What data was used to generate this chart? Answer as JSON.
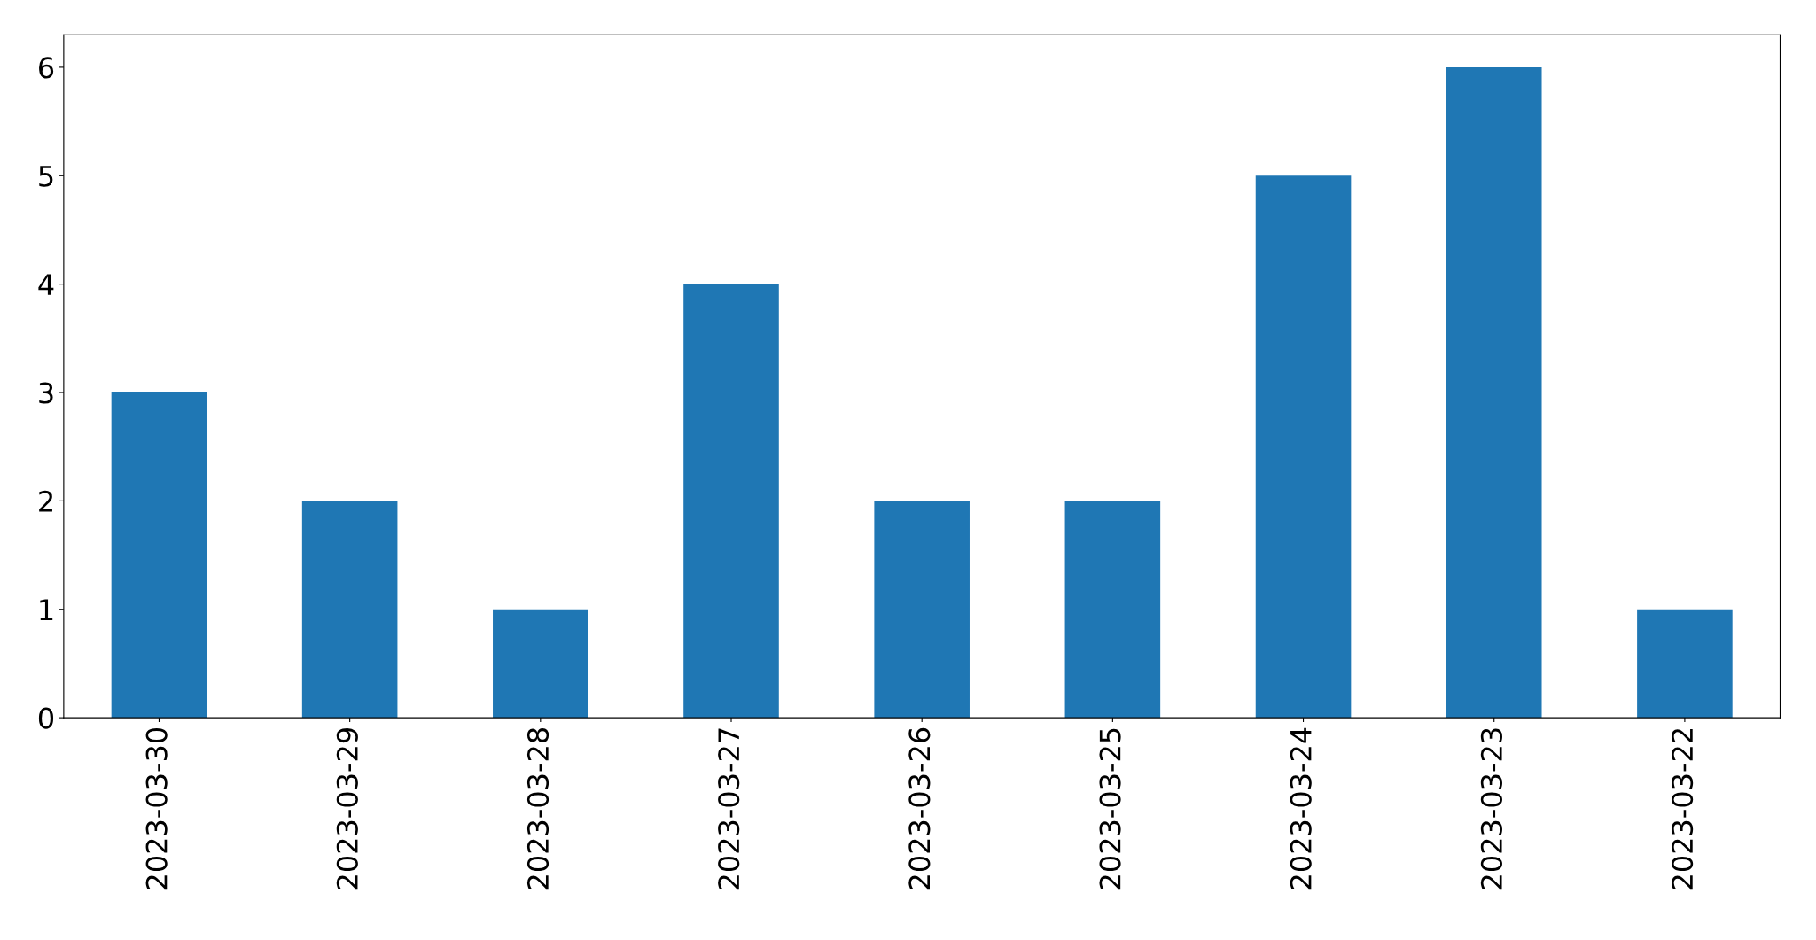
{
  "chart_data": {
    "type": "bar",
    "categories": [
      "2023-03-30",
      "2023-03-29",
      "2023-03-28",
      "2023-03-27",
      "2023-03-26",
      "2023-03-25",
      "2023-03-24",
      "2023-03-23",
      "2023-03-22"
    ],
    "values": [
      3,
      2,
      1,
      4,
      2,
      2,
      5,
      6,
      1
    ],
    "color": "#1f77b4",
    "ylim": [
      0,
      6.3
    ],
    "yticks": [
      0,
      1,
      2,
      3,
      4,
      5,
      6
    ],
    "grid": false,
    "legend": false
  }
}
